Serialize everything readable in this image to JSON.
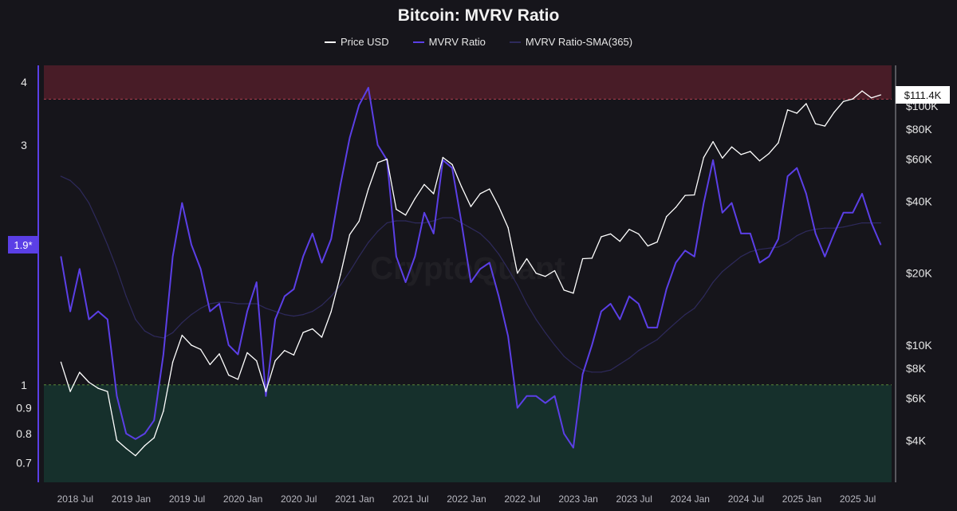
{
  "chart_data": {
    "type": "line",
    "title": "Bitcoin: MVRV Ratio",
    "watermark": "CryptoQuant",
    "legend_placement": "top-center",
    "grid": false,
    "xlim": [
      "2018-03-20",
      "2025-10-20"
    ],
    "x_ticks": [
      "2018 Jul",
      "2019 Jan",
      "2019 Jul",
      "2020 Jan",
      "2020 Jul",
      "2021 Jan",
      "2021 Jul",
      "2022 Jan",
      "2022 Jul",
      "2023 Jan",
      "2023 Jul",
      "2024 Jan",
      "2024 Jul",
      "2025 Jan",
      "2025 Jul"
    ],
    "x_tick_dates": [
      "2018-07",
      "2019-01",
      "2019-07",
      "2020-01",
      "2020-07",
      "2021-01",
      "2021-07",
      "2022-01",
      "2022-07",
      "2023-01",
      "2023-07",
      "2024-01",
      "2024-07",
      "2025-01",
      "2025-07"
    ],
    "left_axis": {
      "scale": "log",
      "ylim": [
        0.64,
        4.32
      ],
      "ticks": [
        4,
        3,
        1,
        0.9,
        0.8,
        0.7
      ],
      "tick_labels": [
        "4",
        "3",
        "1",
        "0.9",
        "0.8",
        "0.7"
      ],
      "current_label": "1.9*",
      "current_value": 1.9
    },
    "right_axis": {
      "scale": "log",
      "ylim": [
        2670,
        148000
      ],
      "ticks": [
        100000,
        80000,
        60000,
        40000,
        20000,
        10000,
        8000,
        6000,
        4000
      ],
      "tick_labels": [
        "$100K",
        "$80K",
        "$60K",
        "$40K",
        "$20K",
        "$10K",
        "$8K",
        "$6K",
        "$4K"
      ],
      "current_label": "$111.4K",
      "current_value": 111400
    },
    "zones": [
      {
        "name": "overvalued",
        "from": 3.7,
        "to": 4.32,
        "color": "#5a1f2c"
      },
      {
        "name": "undervalued",
        "from": 0.64,
        "to": 1,
        "color": "#173a33"
      }
    ],
    "dates": [
      "2018-05",
      "2018-06",
      "2018-07",
      "2018-08",
      "2018-09",
      "2018-10",
      "2018-11",
      "2018-12",
      "2019-01",
      "2019-02",
      "2019-03",
      "2019-04",
      "2019-05",
      "2019-06",
      "2019-07",
      "2019-08",
      "2019-09",
      "2019-10",
      "2019-11",
      "2019-12",
      "2020-01",
      "2020-02",
      "2020-03",
      "2020-04",
      "2020-05",
      "2020-06",
      "2020-07",
      "2020-08",
      "2020-09",
      "2020-10",
      "2020-11",
      "2020-12",
      "2021-01",
      "2021-02",
      "2021-03",
      "2021-04",
      "2021-05",
      "2021-06",
      "2021-07",
      "2021-08",
      "2021-09",
      "2021-10",
      "2021-11",
      "2021-12",
      "2022-01",
      "2022-02",
      "2022-03",
      "2022-04",
      "2022-05",
      "2022-06",
      "2022-07",
      "2022-08",
      "2022-09",
      "2022-10",
      "2022-11",
      "2022-12",
      "2023-01",
      "2023-02",
      "2023-03",
      "2023-04",
      "2023-05",
      "2023-06",
      "2023-07",
      "2023-08",
      "2023-09",
      "2023-10",
      "2023-11",
      "2023-12",
      "2024-01",
      "2024-02",
      "2024-03",
      "2024-04",
      "2024-05",
      "2024-06",
      "2024-07",
      "2024-08",
      "2024-09",
      "2024-10",
      "2024-11",
      "2024-12",
      "2025-01",
      "2025-02",
      "2025-03",
      "2025-04",
      "2025-05",
      "2025-06",
      "2025-07",
      "2025-08",
      "2025-09"
    ],
    "series": [
      {
        "name": "Price USD",
        "axis": "right",
        "color": "#ffffff",
        "values": [
          8500,
          6400,
          7700,
          7000,
          6600,
          6400,
          4000,
          3700,
          3450,
          3800,
          4100,
          5300,
          8500,
          11000,
          10000,
          9600,
          8300,
          9200,
          7500,
          7200,
          9300,
          8600,
          6400,
          8600,
          9500,
          9100,
          11300,
          11700,
          10800,
          13800,
          19700,
          29000,
          33000,
          45000,
          58000,
          60000,
          37000,
          35000,
          41000,
          47000,
          43000,
          61000,
          57000,
          46000,
          38000,
          43000,
          45000,
          38000,
          31000,
          20000,
          23000,
          20000,
          19400,
          20500,
          17000,
          16500,
          23000,
          23100,
          28400,
          29200,
          27200,
          30500,
          29200,
          26000,
          27000,
          34500,
          37700,
          42300,
          42500,
          61000,
          71000,
          60600,
          67500,
          62700,
          64600,
          59000,
          63300,
          70200,
          96400,
          93400,
          102400,
          84300,
          82500,
          94200,
          104600,
          107100,
          115700,
          108200,
          111400
        ]
      },
      {
        "name": "MVRV Ratio",
        "axis": "left",
        "color": "#5b3fe6",
        "values": [
          1.8,
          1.4,
          1.7,
          1.35,
          1.4,
          1.35,
          0.95,
          0.8,
          0.78,
          0.8,
          0.85,
          1.15,
          1.8,
          2.3,
          1.9,
          1.7,
          1.4,
          1.45,
          1.2,
          1.15,
          1.4,
          1.6,
          0.95,
          1.35,
          1.5,
          1.55,
          1.8,
          2.0,
          1.75,
          1.95,
          2.5,
          3.1,
          3.6,
          3.9,
          3.0,
          2.8,
          1.8,
          1.6,
          1.8,
          2.2,
          2.0,
          2.8,
          2.7,
          2.1,
          1.6,
          1.7,
          1.75,
          1.5,
          1.25,
          0.9,
          0.95,
          0.95,
          0.92,
          0.95,
          0.8,
          0.75,
          1.05,
          1.2,
          1.4,
          1.45,
          1.35,
          1.5,
          1.45,
          1.3,
          1.3,
          1.55,
          1.75,
          1.85,
          1.8,
          2.3,
          2.8,
          2.2,
          2.3,
          2.0,
          2.0,
          1.75,
          1.8,
          1.95,
          2.6,
          2.7,
          2.4,
          2.0,
          1.8,
          2.0,
          2.2,
          2.2,
          2.4,
          2.1,
          1.9
        ]
      },
      {
        "name": "MVRV Ratio-SMA(365)",
        "axis": "left",
        "color": "#2e2a5c",
        "values": [
          2.6,
          2.55,
          2.45,
          2.3,
          2.1,
          1.9,
          1.7,
          1.5,
          1.35,
          1.28,
          1.25,
          1.24,
          1.27,
          1.33,
          1.38,
          1.42,
          1.45,
          1.46,
          1.46,
          1.45,
          1.45,
          1.45,
          1.42,
          1.4,
          1.38,
          1.37,
          1.38,
          1.4,
          1.44,
          1.5,
          1.58,
          1.68,
          1.8,
          1.92,
          2.02,
          2.1,
          2.12,
          2.12,
          2.1,
          2.1,
          2.12,
          2.15,
          2.15,
          2.1,
          2.05,
          2.0,
          1.92,
          1.82,
          1.7,
          1.58,
          1.45,
          1.35,
          1.27,
          1.2,
          1.14,
          1.1,
          1.07,
          1.06,
          1.06,
          1.07,
          1.1,
          1.13,
          1.17,
          1.2,
          1.23,
          1.28,
          1.33,
          1.38,
          1.42,
          1.5,
          1.6,
          1.68,
          1.74,
          1.8,
          1.84,
          1.86,
          1.87,
          1.88,
          1.92,
          1.98,
          2.02,
          2.04,
          2.05,
          2.05,
          2.06,
          2.08,
          2.1,
          2.1,
          2.1
        ]
      }
    ]
  }
}
